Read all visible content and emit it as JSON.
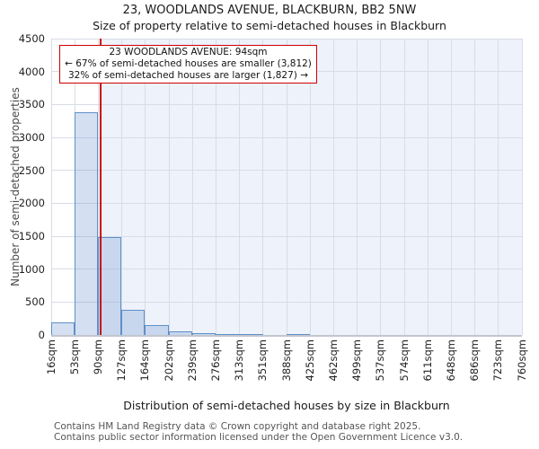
{
  "chart_data": {
    "type": "bar",
    "title": "23, WOODLANDS AVENUE, BLACKBURN, BB2 5NW",
    "subtitle": "Size of property relative to semi-detached houses in Blackburn",
    "xlabel": "Distribution of semi-detached houses by size in Blackburn",
    "ylabel": "Number of semi-detached properties",
    "xlim": [
      16,
      760
    ],
    "ylim": [
      0,
      4500
    ],
    "grid": true,
    "legend": "none",
    "y_ticks": [
      0,
      500,
      1000,
      1500,
      2000,
      2500,
      3000,
      3500,
      4000,
      4500
    ],
    "x_ticks": [
      16,
      53,
      90,
      127,
      164,
      202,
      239,
      276,
      313,
      351,
      388,
      425,
      462,
      499,
      537,
      574,
      611,
      648,
      686,
      723,
      760
    ],
    "x_tick_suffix": "sqm",
    "bin_edges": [
      16,
      53,
      90,
      127,
      164,
      202,
      239,
      276,
      313,
      351,
      388,
      425,
      462,
      499,
      537,
      574,
      611,
      648,
      686,
      723,
      760
    ],
    "values": [
      190,
      3380,
      1490,
      380,
      150,
      50,
      25,
      15,
      15,
      0,
      12,
      0,
      0,
      0,
      0,
      0,
      0,
      0,
      0,
      0
    ],
    "marker": {
      "value": 94,
      "color": "#cc0000"
    },
    "annotation": {
      "line1": "23 WOODLANDS AVENUE: 94sqm",
      "line2": "← 67% of semi-detached houses are smaller (3,812)",
      "line3": "32% of semi-detached houses are larger (1,827) →"
    },
    "colors": {
      "bar_fill": "rgba(120,160,215,0.32)",
      "bar_edge": "#5f8fc7",
      "marker": "#cc0000",
      "shade": "#eef2fa",
      "grid": "#d8dce5",
      "axis": "#c2c6cd"
    }
  },
  "footer": {
    "line1": "Contains HM Land Registry data © Crown copyright and database right 2025.",
    "line2": "Contains public sector information licensed under the Open Government Licence v3.0."
  }
}
